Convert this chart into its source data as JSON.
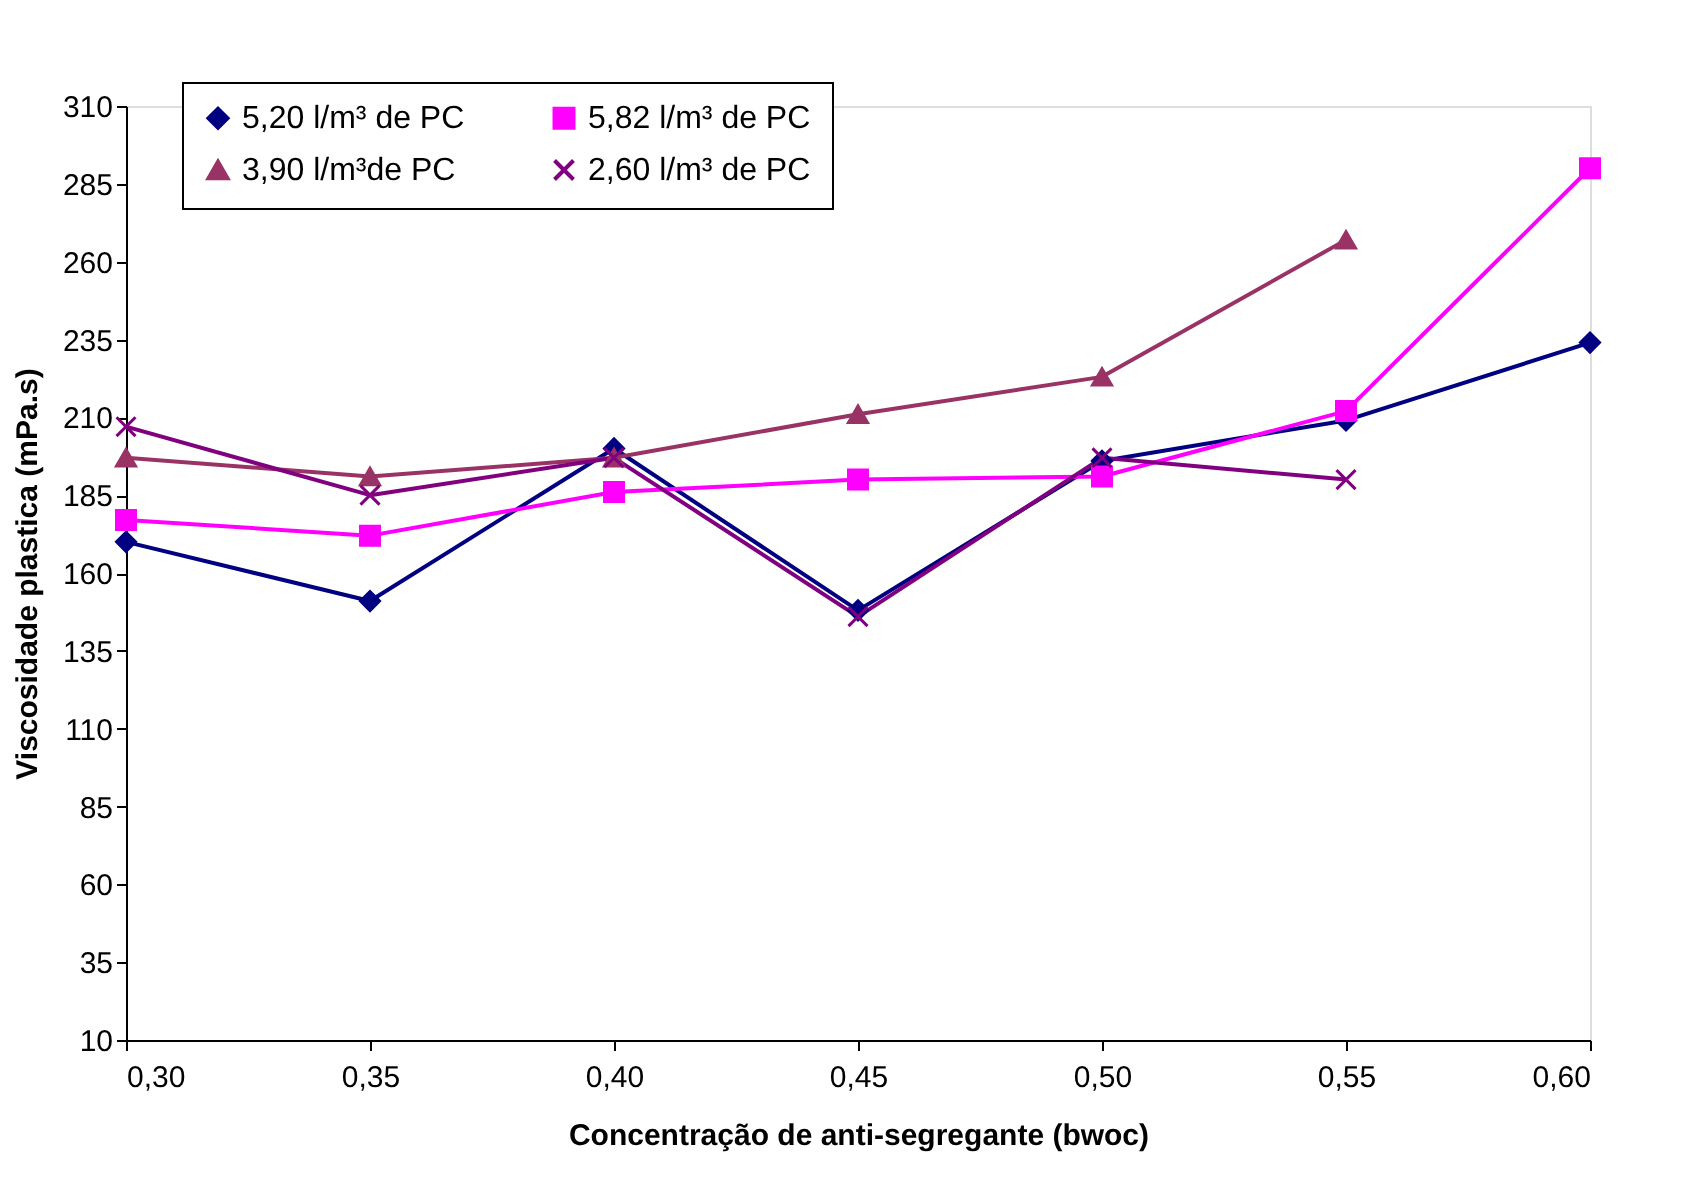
{
  "chart_data": {
    "type": "line",
    "xlabel": "Concentração de anti-segregante (bwoc)",
    "ylabel": "Viscosidade plastica (mPa.s)",
    "x": [
      0.3,
      0.35,
      0.4,
      0.45,
      0.5,
      0.55,
      0.6
    ],
    "series": [
      {
        "name": "5,20 l/m³ de PC",
        "color": "#000080",
        "marker": "diamond",
        "values": [
          170,
          151,
          200,
          148,
          196,
          209,
          234
        ]
      },
      {
        "name": "5,82 l/m³ de PC",
        "color": "#ff00ff",
        "marker": "square",
        "values": [
          177,
          172,
          186,
          190,
          191,
          212,
          290
        ]
      },
      {
        "name": "3,90 l/m³de  PC",
        "color": "#993366",
        "marker": "triangle",
        "values": [
          197,
          191,
          197,
          211,
          223,
          267,
          null
        ]
      },
      {
        "name": "2,60 l/m³ de PC",
        "color": "#800080",
        "marker": "cross",
        "values": [
          207,
          185,
          197,
          146,
          197,
          190,
          null
        ]
      }
    ],
    "xlim": [
      0.3,
      0.6
    ],
    "xticks": [
      {
        "value": 0.3,
        "label": "0,30"
      },
      {
        "value": 0.35,
        "label": "0,35"
      },
      {
        "value": 0.4,
        "label": "0,40"
      },
      {
        "value": 0.45,
        "label": "0,45"
      },
      {
        "value": 0.5,
        "label": "0,50"
      },
      {
        "value": 0.55,
        "label": "0,55"
      },
      {
        "value": 0.6,
        "label": "0,60"
      }
    ],
    "ylim": [
      10,
      310
    ],
    "yticks": [
      10,
      35,
      60,
      85,
      110,
      135,
      160,
      185,
      210,
      235,
      260,
      285,
      310
    ],
    "grid": false,
    "legend": "top",
    "line_style": "solid"
  }
}
